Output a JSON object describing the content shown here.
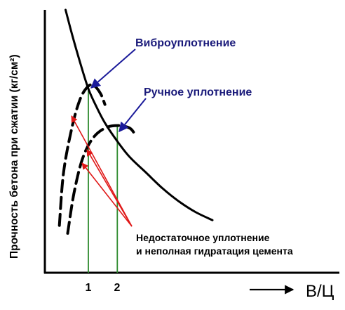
{
  "chart_data": {
    "type": "line",
    "title": "",
    "xlabel": "В/Ц",
    "ylabel": "Прочность бетона при сжатии (кг/см²)",
    "x_ticks": [
      "1",
      "2"
    ],
    "annotations": {
      "vibro": "Виброуплотнение",
      "manual": "Ручное уплотнение",
      "insufficient_line1": "Недостаточное уплотнение",
      "insufficient_line2": "и неполная гидратация цемента"
    },
    "series": [
      {
        "style": "solid",
        "x": [
          0.45,
          0.6,
          0.8,
          1.0,
          1.2,
          1.4,
          1.7,
          2.0,
          2.4,
          2.8,
          3.2,
          3.6,
          4.0
        ],
        "y": [
          100,
          91,
          80,
          70,
          63,
          57,
          50,
          44,
          38,
          32,
          27,
          23,
          20
        ]
      },
      {
        "style": "dashed",
        "x": [
          0.3,
          0.4,
          0.6,
          0.8,
          1.0,
          1.15,
          1.3,
          1.4
        ],
        "y": [
          18,
          38,
          55,
          66,
          71,
          71,
          68,
          64
        ]
      },
      {
        "style": "dashed",
        "x": [
          0.5,
          0.65,
          0.85,
          1.1,
          1.4,
          1.7,
          2.0,
          2.15
        ],
        "y": [
          15,
          30,
          43,
          51,
          55,
          56,
          55,
          52
        ]
      }
    ],
    "markers_x": [
      1.0,
      1.7
    ],
    "grid": false,
    "colors": {
      "curve": "#000000",
      "marker": "#2e8b2e",
      "arrow_blue": "#1a1a9a",
      "arrow_red": "#e01818",
      "text_blue": "#1a1a7a"
    }
  }
}
